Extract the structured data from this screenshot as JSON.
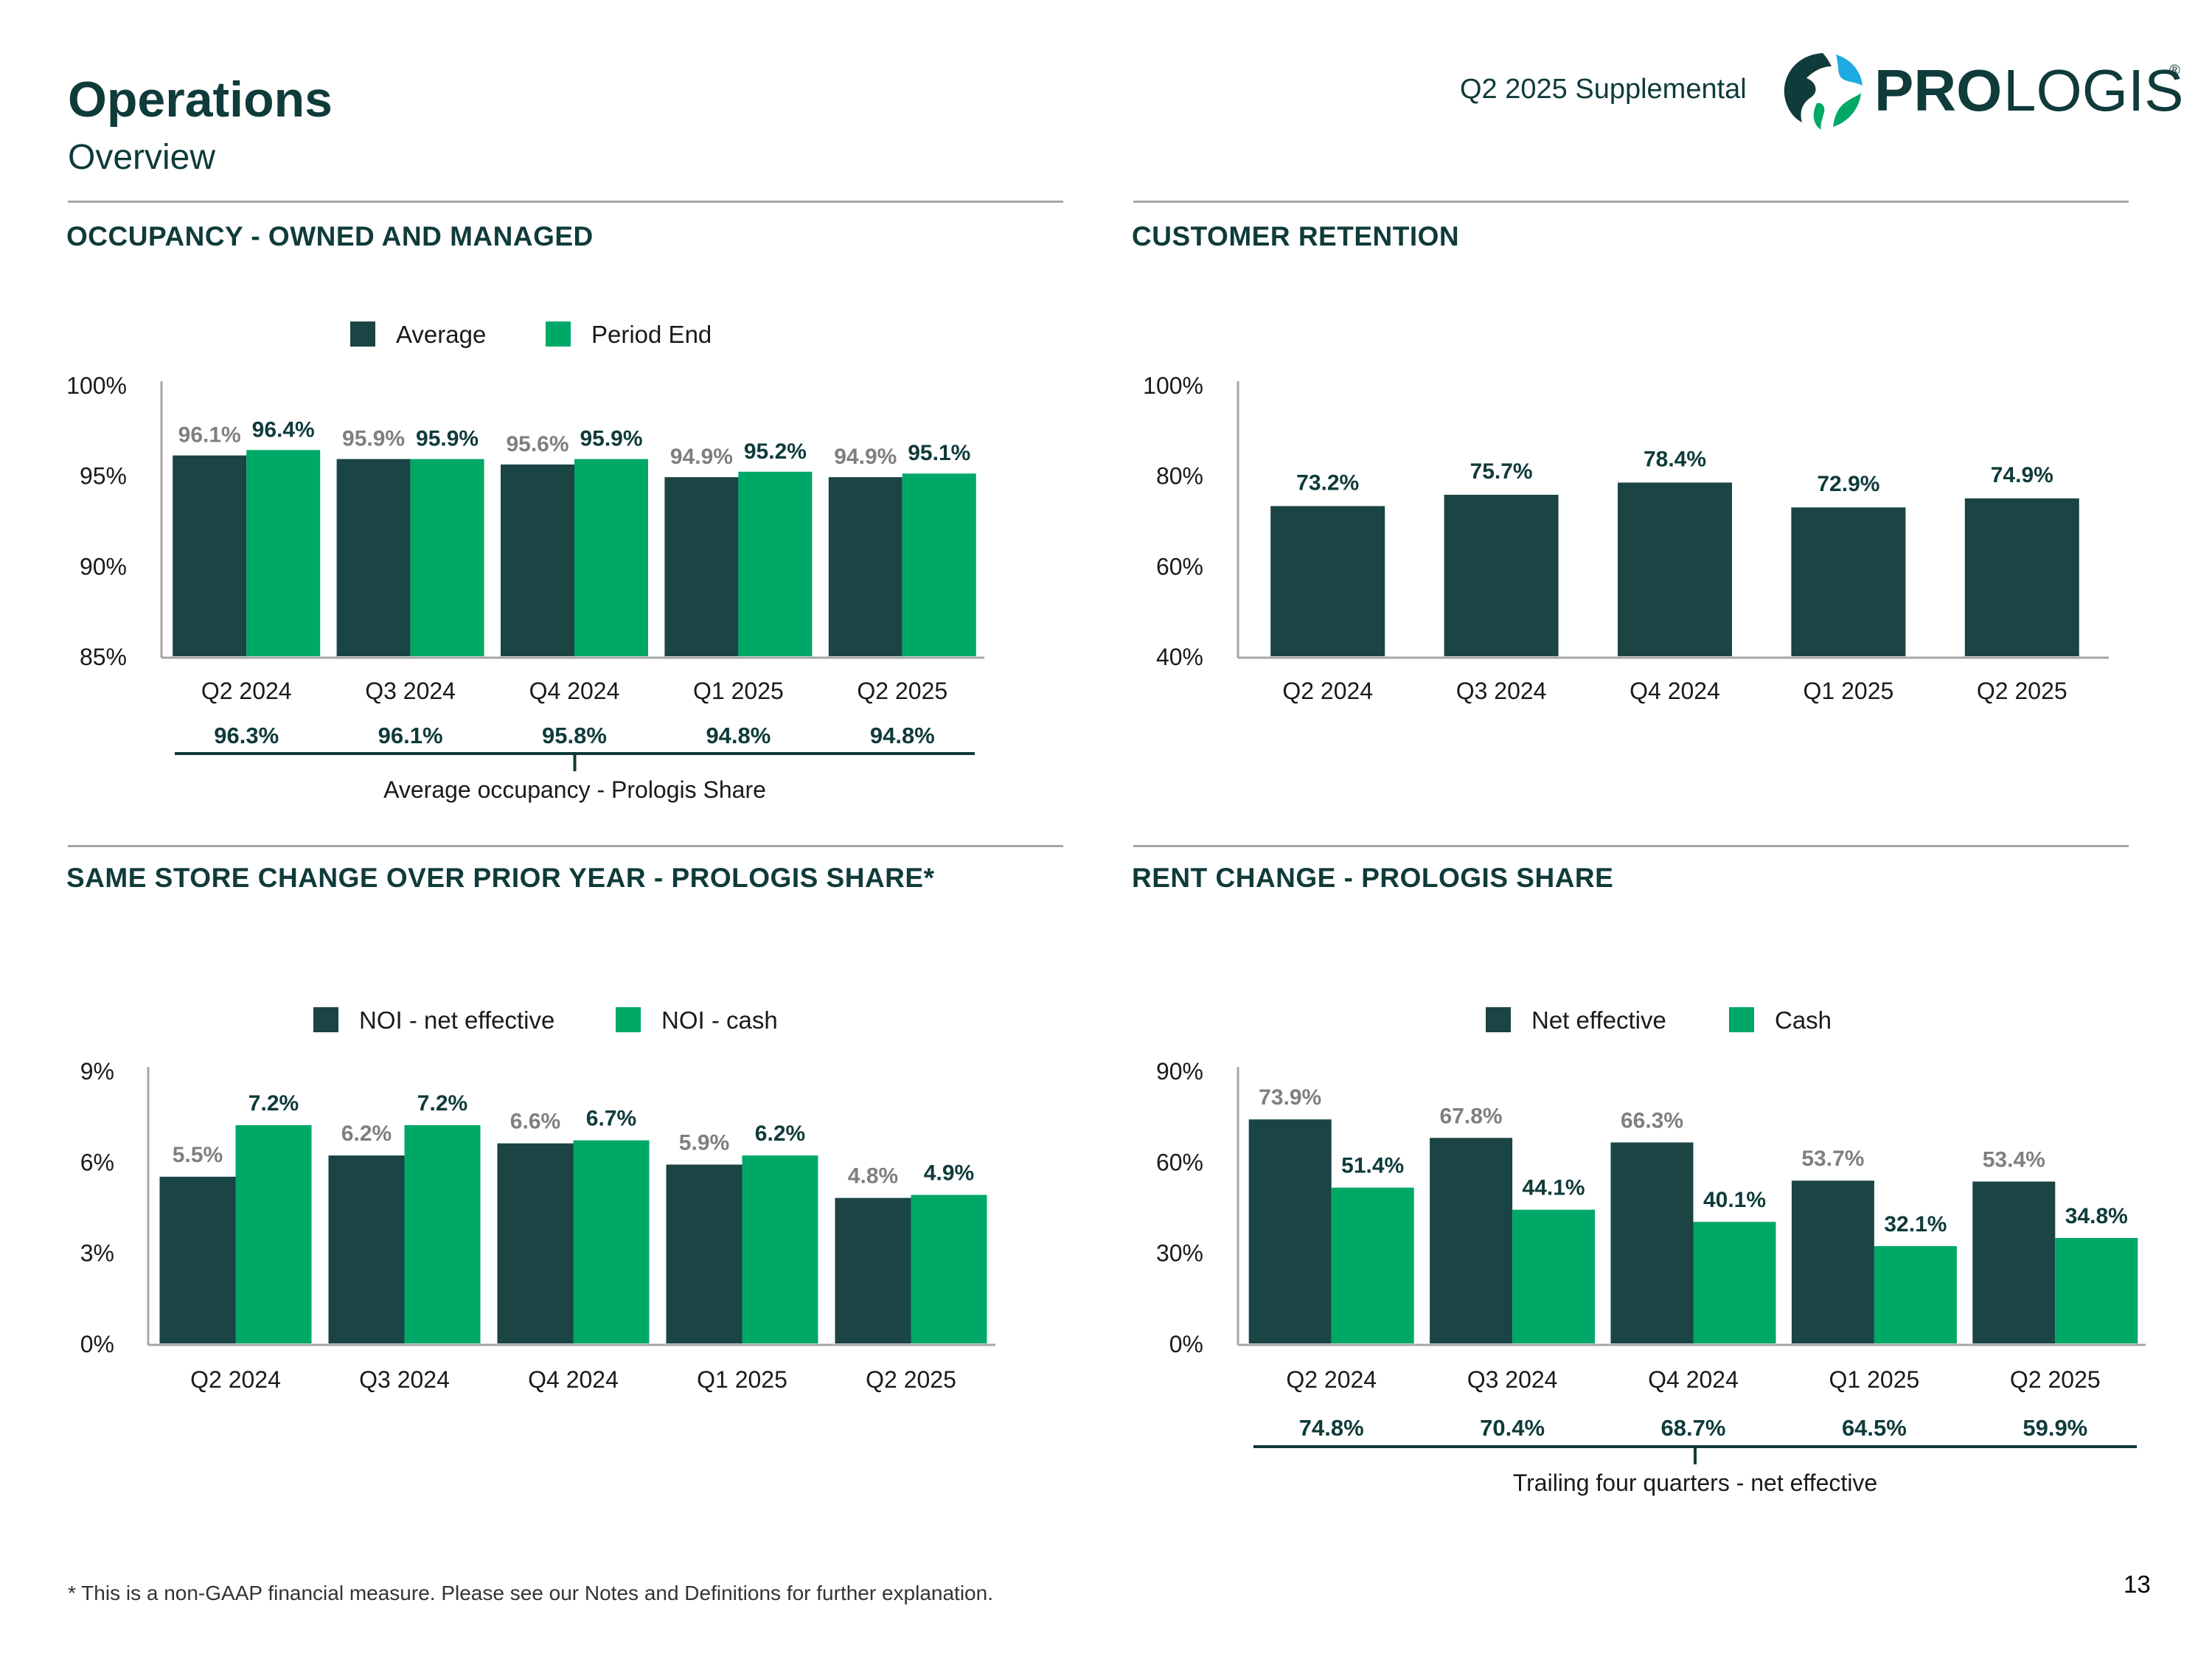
{
  "header": {
    "title": "Operations",
    "subtitle": "Overview",
    "supplemental": "Q2 2025 Supplemental",
    "brand_bold": "PRO",
    "brand_light": "LOGIS",
    "brand_reg": "®"
  },
  "colors": {
    "dark": "#1b4444",
    "green": "#00a867",
    "heading": "#0f3b3a",
    "gray_label": "#7f7f7f",
    "axis": "#a6a6a6"
  },
  "sections": {
    "occupancy": "OCCUPANCY - OWNED AND MANAGED",
    "retention": "CUSTOMER RETENTION",
    "same_store": "SAME STORE CHANGE OVER PRIOR YEAR - PROLOGIS SHARE*",
    "rent_change": "RENT CHANGE - PROLOGIS SHARE"
  },
  "chart_data": [
    {
      "id": "occupancy",
      "type": "bar",
      "title": "OCCUPANCY - OWNED AND MANAGED",
      "categories": [
        "Q2 2024",
        "Q3 2024",
        "Q4 2024",
        "Q1 2025",
        "Q2 2025"
      ],
      "series": [
        {
          "name": "Average",
          "values": [
            96.1,
            95.9,
            95.6,
            94.9,
            94.9
          ]
        },
        {
          "name": "Period End",
          "values": [
            96.4,
            95.9,
            95.9,
            95.2,
            95.1
          ]
        }
      ],
      "value_labels": [
        [
          "96.1%",
          "95.9%",
          "95.6%",
          "94.9%",
          "94.9%"
        ],
        [
          "96.4%",
          "95.9%",
          "95.9%",
          "95.2%",
          "95.1%"
        ]
      ],
      "ylim": [
        85,
        100
      ],
      "yticks": [
        85,
        90,
        95,
        100
      ],
      "ytick_labels": [
        "85%",
        "90%",
        "95%",
        "100%"
      ],
      "legend_position": "top-center",
      "bottom_row": {
        "values": [
          "96.3%",
          "96.1%",
          "95.8%",
          "94.8%",
          "94.8%"
        ],
        "caption": "Average occupancy - Prologis Share"
      }
    },
    {
      "id": "retention",
      "type": "bar",
      "title": "CUSTOMER RETENTION",
      "categories": [
        "Q2 2024",
        "Q3 2024",
        "Q4 2024",
        "Q1 2025",
        "Q2 2025"
      ],
      "series": [
        {
          "name": "Customer retention",
          "values": [
            73.2,
            75.7,
            78.4,
            72.9,
            74.9
          ]
        }
      ],
      "value_labels": [
        [
          "73.2%",
          "75.7%",
          "78.4%",
          "72.9%",
          "74.9%"
        ]
      ],
      "ylim": [
        40,
        100
      ],
      "yticks": [
        40,
        60,
        80,
        100
      ],
      "ytick_labels": [
        "40%",
        "60%",
        "80%",
        "100%"
      ]
    },
    {
      "id": "same_store",
      "type": "bar",
      "title": "SAME STORE CHANGE OVER PRIOR YEAR - PROLOGIS SHARE*",
      "categories": [
        "Q2 2024",
        "Q3 2024",
        "Q4 2024",
        "Q1 2025",
        "Q2 2025"
      ],
      "series": [
        {
          "name": "NOI - net effective",
          "values": [
            5.5,
            6.2,
            6.6,
            5.9,
            4.8
          ]
        },
        {
          "name": "NOI - cash",
          "values": [
            7.2,
            7.2,
            6.7,
            6.2,
            4.9
          ]
        }
      ],
      "value_labels": [
        [
          "5.5%",
          "6.2%",
          "6.6%",
          "5.9%",
          "4.8%"
        ],
        [
          "7.2%",
          "7.2%",
          "6.7%",
          "6.2%",
          "4.9%"
        ]
      ],
      "ylim": [
        0,
        9
      ],
      "yticks": [
        0,
        3,
        6,
        9
      ],
      "ytick_labels": [
        "0%",
        "3%",
        "6%",
        "9%"
      ],
      "legend_position": "top-center"
    },
    {
      "id": "rent_change",
      "type": "bar",
      "title": "RENT CHANGE - PROLOGIS SHARE",
      "categories": [
        "Q2 2024",
        "Q3 2024",
        "Q4 2024",
        "Q1 2025",
        "Q2 2025"
      ],
      "series": [
        {
          "name": "Net effective",
          "values": [
            73.9,
            67.8,
            66.3,
            53.7,
            53.4
          ]
        },
        {
          "name": "Cash",
          "values": [
            51.4,
            44.1,
            40.1,
            32.1,
            34.8
          ]
        }
      ],
      "value_labels": [
        [
          "73.9%",
          "67.8%",
          "66.3%",
          "53.7%",
          "53.4%"
        ],
        [
          "51.4%",
          "44.1%",
          "40.1%",
          "32.1%",
          "34.8%"
        ]
      ],
      "ylim": [
        0,
        90
      ],
      "yticks": [
        0,
        30,
        60,
        90
      ],
      "ytick_labels": [
        "0%",
        "30%",
        "60%",
        "90%"
      ],
      "legend_position": "top-center",
      "bottom_row": {
        "values": [
          "74.8%",
          "70.4%",
          "68.7%",
          "64.5%",
          "59.9%"
        ],
        "caption": "Trailing four quarters - net effective"
      }
    }
  ],
  "footer": {
    "footnote": "* This is a non-GAAP financial measure. Please see our Notes and Definitions for further explanation.",
    "page_number": "13"
  }
}
